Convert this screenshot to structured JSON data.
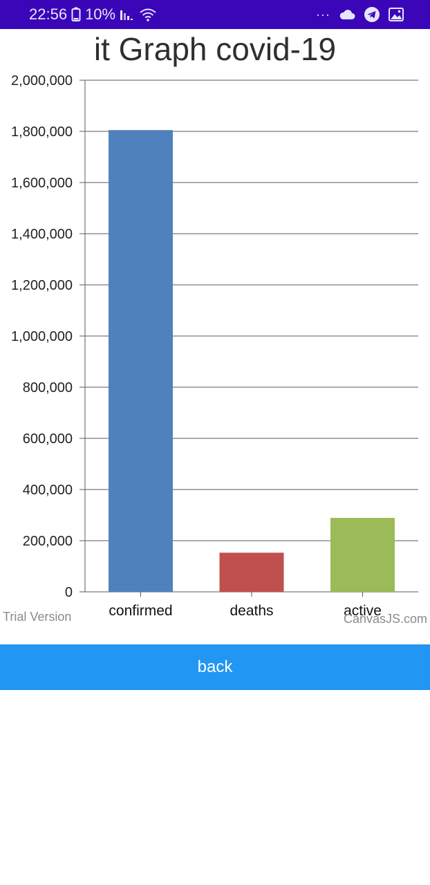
{
  "status_bar": {
    "time": "22:56",
    "battery": "10%",
    "overflow": "···",
    "icons": [
      "battery-icon",
      "signal-icon",
      "wifi-icon",
      "overflow-dots-icon",
      "cloud-icon",
      "telegram-icon",
      "gallery-icon"
    ]
  },
  "chart_data": {
    "type": "bar",
    "title": "it Graph covid-19",
    "categories": [
      "confirmed",
      "deaths",
      "active"
    ],
    "values": [
      1805000,
      153000,
      289000
    ],
    "colors": [
      "#4f81bc",
      "#c0504e",
      "#9bbb58"
    ],
    "ylim": [
      0,
      2000000
    ],
    "yticks": [
      "0",
      "200,000",
      "400,000",
      "600,000",
      "800,000",
      "1,000,000",
      "1,200,000",
      "1,400,000",
      "1,600,000",
      "1,800,000",
      "2,000,000"
    ],
    "grid": true,
    "watermarks": {
      "left": "Trial Version",
      "right": "CanvasJS.com"
    }
  },
  "back_button": {
    "label": "back"
  }
}
